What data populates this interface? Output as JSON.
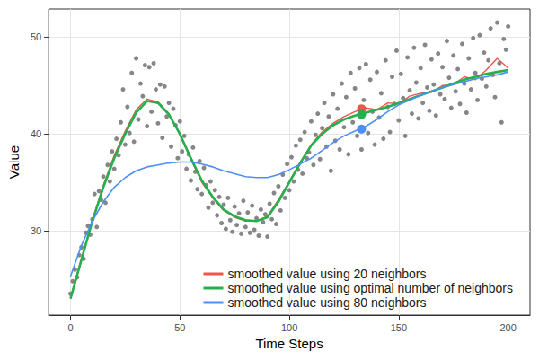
{
  "chart_data": {
    "type": "line",
    "x_label": "Time Steps",
    "y_label": "Value",
    "xlim": [
      -10,
      210
    ],
    "ylim": [
      21.3,
      52.9
    ],
    "xticks": [
      0,
      50,
      100,
      150,
      200
    ],
    "yticks": [
      30,
      40,
      50
    ],
    "grid": true,
    "legend": "lower right",
    "series": [
      {
        "type": "scatter",
        "marker": "circle",
        "color": "#808080",
        "x": [
          0,
          1,
          2,
          3,
          4,
          5,
          6,
          7,
          8,
          9,
          10,
          11,
          12,
          13,
          14,
          15,
          16,
          17,
          18,
          19,
          20,
          21,
          22,
          23,
          24,
          25,
          26,
          27,
          28,
          29,
          30,
          31,
          32,
          33,
          34,
          35,
          36,
          37,
          38,
          39,
          40,
          41,
          42,
          43,
          44,
          45,
          46,
          47,
          48,
          49,
          50,
          51,
          52,
          53,
          54,
          55,
          56,
          57,
          58,
          59,
          60,
          61,
          62,
          63,
          64,
          65,
          66,
          67,
          68,
          69,
          70,
          71,
          72,
          73,
          74,
          75,
          76,
          77,
          78,
          79,
          80,
          81,
          82,
          83,
          84,
          85,
          86,
          87,
          88,
          89,
          90,
          91,
          92,
          93,
          94,
          95,
          96,
          97,
          98,
          99,
          100,
          101,
          102,
          103,
          104,
          105,
          106,
          107,
          108,
          109,
          110,
          111,
          112,
          113,
          114,
          115,
          116,
          117,
          118,
          119,
          120,
          121,
          122,
          123,
          124,
          125,
          126,
          127,
          128,
          129,
          130,
          131,
          132,
          133,
          134,
          135,
          136,
          137,
          138,
          139,
          140,
          141,
          142,
          143,
          144,
          145,
          146,
          147,
          148,
          149,
          150,
          151,
          152,
          153,
          154,
          155,
          156,
          157,
          158,
          159,
          160,
          161,
          162,
          163,
          164,
          165,
          166,
          167,
          168,
          169,
          170,
          171,
          172,
          173,
          174,
          175,
          176,
          177,
          178,
          179,
          180,
          181,
          182,
          183,
          184,
          185,
          186,
          187,
          188,
          189,
          190,
          191,
          192,
          193,
          194,
          195,
          196,
          197,
          198,
          199,
          200
        ],
        "values": [
          23.5,
          24.8,
          26,
          25.2,
          27.5,
          28.3,
          27.1,
          29.8,
          30.5,
          29.6,
          31.2,
          33.8,
          30.4,
          34.1,
          33.2,
          35.6,
          32.9,
          36.8,
          35.1,
          38.2,
          36.4,
          39.5,
          37.8,
          41.2,
          44.6,
          38.9,
          42.8,
          40.1,
          46.3,
          39.2,
          47.8,
          41.5,
          45.2,
          43.9,
          47.1,
          40.8,
          46.9,
          42.3,
          47.3,
          44.6,
          41.1,
          45.1,
          39.6,
          44.9,
          41.8,
          43.2,
          38.7,
          42.6,
          40.9,
          37.5,
          41.3,
          38.2,
          39.8,
          36.4,
          37.9,
          35.2,
          38.6,
          36.1,
          34.3,
          37.2,
          33.8,
          36.5,
          34.7,
          32.4,
          35.1,
          32.9,
          34.2,
          31.6,
          33.5,
          30.8,
          32.7,
          30.2,
          33.4,
          31.1,
          29.9,
          32.5,
          30.6,
          31.8,
          29.7,
          33.1,
          30.4,
          31.9,
          29.8,
          32.6,
          30.1,
          31.3,
          29.5,
          32.2,
          30.9,
          31.7,
          29.4,
          32.8,
          31.2,
          33.9,
          30.7,
          34.6,
          32.1,
          35.8,
          33.4,
          36.9,
          34.2,
          37.6,
          35.1,
          38.8,
          36.3,
          39.4,
          35.9,
          40.2,
          37.5,
          38.1,
          41.3,
          36.8,
          39.9,
          42.1,
          37.4,
          40.6,
          43.2,
          38.7,
          41.8,
          36.2,
          44.1,
          39.3,
          42.6,
          38.4,
          45.2,
          40.7,
          43.8,
          37.9,
          46.3,
          41.2,
          44.7,
          39.8,
          46.8,
          38.4,
          43.5,
          47.2,
          40.1,
          45.6,
          42.3,
          38.9,
          46.4,
          41.7,
          44.2,
          39.5,
          47.6,
          42.8,
          40.2,
          45.9,
          43.1,
          48.6,
          41.4,
          46.2,
          43.7,
          39.8,
          47.9,
          44.5,
          42.1,
          48.9,
          45.3,
          41.6,
          46.8,
          43.2,
          49.2,
          44.8,
          42.4,
          47.7,
          45.1,
          41.9,
          48.3,
          44.1,
          46.9,
          43.6,
          49.6,
          45.8,
          42.7,
          48.1,
          44.4,
          46.7,
          43.1,
          49.3,
          45.2,
          42.2,
          47.8,
          44.6,
          49.9,
          46.3,
          43.5,
          50.2,
          45.7,
          48.4,
          44.9,
          47.6,
          50.9,
          46.1,
          43.8,
          51.5,
          47.3,
          41.2,
          49.8,
          48.7,
          51.1
        ]
      },
      {
        "name": "smoothed value using 20 neighbors",
        "type": "line",
        "line_style": "solid",
        "color": "#f0544a",
        "x": [
          0,
          5,
          10,
          15,
          20,
          25,
          30,
          35,
          40,
          45,
          50,
          55,
          60,
          65,
          70,
          75,
          80,
          85,
          90,
          95,
          100,
          105,
          110,
          115,
          120,
          125,
          130,
          135,
          140,
          145,
          150,
          155,
          160,
          165,
          170,
          175,
          180,
          185,
          190,
          195,
          200
        ],
        "values": [
          23,
          27.2,
          31.1,
          34.7,
          37.8,
          40.3,
          42.5,
          43.6,
          43.3,
          42.1,
          39.9,
          37.4,
          35,
          33.4,
          32.1,
          31.4,
          31,
          31,
          31.5,
          33.2,
          35.1,
          37.1,
          38.9,
          40.2,
          41.1,
          41.8,
          42.3,
          42.7,
          42.5,
          43.2,
          43.1,
          43.9,
          44.2,
          44.3,
          45,
          45.1,
          45.9,
          45.6,
          46.6,
          47.8,
          46.8
        ]
      },
      {
        "name": "smoothed value using optimal number of neighbors",
        "type": "line",
        "line_style": "solid",
        "color": "#22b14c",
        "x": [
          0,
          5,
          10,
          15,
          20,
          25,
          30,
          35,
          40,
          45,
          50,
          55,
          60,
          65,
          70,
          75,
          80,
          85,
          90,
          95,
          100,
          105,
          110,
          115,
          120,
          125,
          130,
          135,
          140,
          145,
          150,
          155,
          160,
          165,
          170,
          175,
          180,
          185,
          190,
          195,
          200
        ],
        "values": [
          23,
          27,
          31,
          34.5,
          37.5,
          40,
          42.2,
          43.4,
          43.2,
          42,
          40,
          37.5,
          35.2,
          33.5,
          32.2,
          31.5,
          31.1,
          31,
          31.4,
          33,
          35,
          37,
          38.8,
          40,
          40.9,
          41.5,
          41.9,
          42.2,
          42.5,
          42.8,
          43.2,
          43.6,
          44,
          44.4,
          44.8,
          45.2,
          45.6,
          45.9,
          46.2,
          46.4,
          46.6
        ]
      },
      {
        "name": "smoothed value using 80 neighbors",
        "type": "line",
        "line_style": "solid",
        "color": "#4e8ef7",
        "x": [
          0,
          5,
          10,
          15,
          20,
          25,
          30,
          35,
          40,
          45,
          50,
          55,
          60,
          65,
          70,
          75,
          80,
          85,
          90,
          95,
          100,
          105,
          110,
          115,
          120,
          125,
          130,
          135,
          140,
          145,
          150,
          155,
          160,
          165,
          170,
          175,
          180,
          185,
          190,
          195,
          200
        ],
        "values": [
          25.3,
          28.5,
          31,
          33,
          34.5,
          35.5,
          36.2,
          36.6,
          36.8,
          37,
          37.1,
          37.1,
          36.9,
          36.6,
          36.2,
          35.9,
          35.6,
          35.5,
          35.5,
          35.8,
          36.3,
          36.9,
          37.5,
          38.3,
          39.1,
          39.8,
          40.3,
          40.8,
          41.5,
          42.3,
          43,
          43.5,
          44,
          44.4,
          44.8,
          45.1,
          45.4,
          45.7,
          45.9,
          46.1,
          46.4
        ]
      },
      {
        "type": "scatter",
        "marker": "circle",
        "colors": [
          "#f0544a",
          "#22b14c",
          "#4e8ef7"
        ],
        "x": [
          133,
          133,
          133
        ],
        "values": [
          42.6,
          42,
          40.5
        ]
      }
    ]
  }
}
